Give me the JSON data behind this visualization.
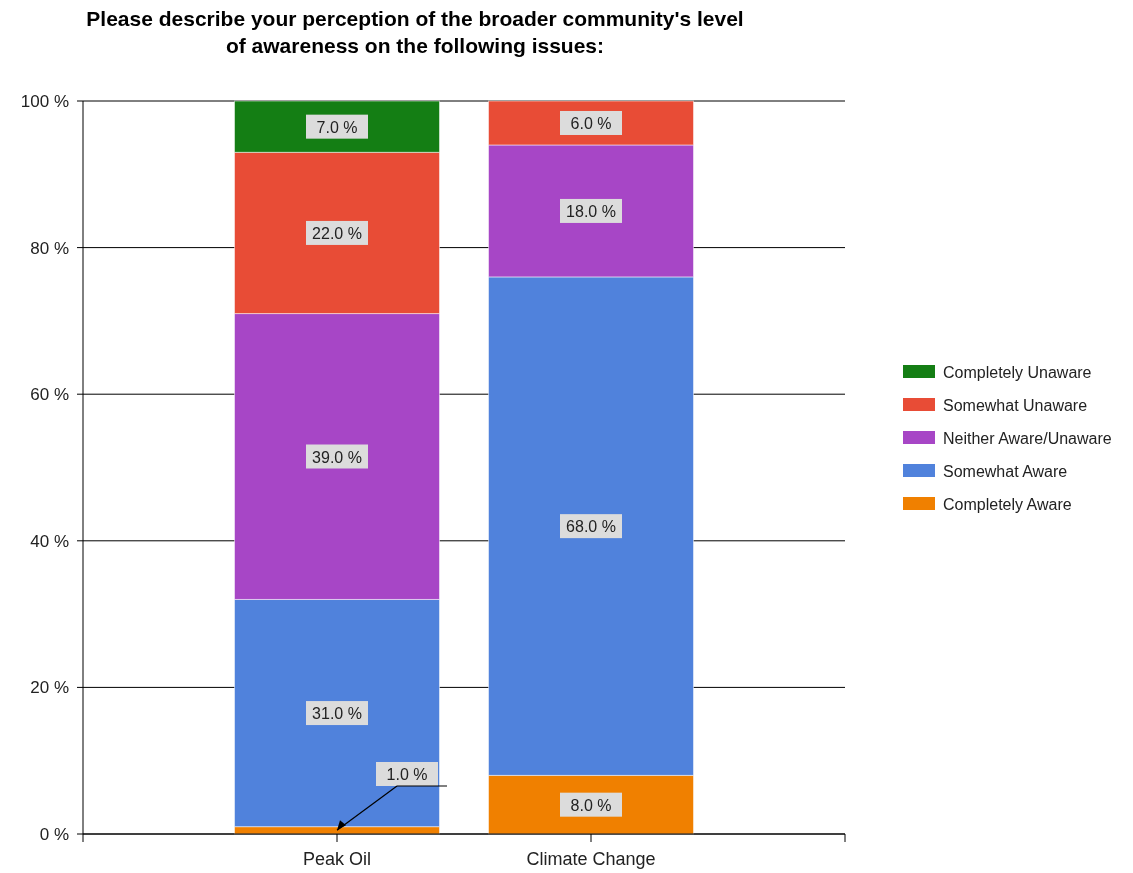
{
  "chart_data": {
    "type": "bar",
    "stacked": true,
    "title": "Please describe your perception of the broader community's level of awareness on the following issues:",
    "categories": [
      "Peak Oil",
      "Climate Change"
    ],
    "series": [
      {
        "name": "Completely Aware",
        "color": "#f08000",
        "values": [
          1,
          8
        ],
        "value_labels": [
          "1.0 %",
          "8.0 %"
        ]
      },
      {
        "name": "Somewhat Aware",
        "color": "#5082dc",
        "values": [
          31,
          68
        ],
        "value_labels": [
          "31.0 %",
          "68.0 %"
        ]
      },
      {
        "name": "Neither Aware/Unaware",
        "color": "#a746c6",
        "values": [
          39,
          18
        ],
        "value_labels": [
          "39.0 %",
          "18.0 %"
        ]
      },
      {
        "name": "Somewhat Unaware",
        "color": "#e84c36",
        "values": [
          22,
          6
        ],
        "value_labels": [
          "22.0 %",
          "6.0 %"
        ]
      },
      {
        "name": "Completely Unaware",
        "color": "#147e14",
        "values": [
          7,
          null
        ],
        "value_labels": [
          "7.0 %",
          null
        ]
      }
    ],
    "ylim": [
      0,
      100
    ],
    "yticks": [
      {
        "value": 0,
        "label": "0 %"
      },
      {
        "value": 20,
        "label": "20 %"
      },
      {
        "value": 40,
        "label": "40 %"
      },
      {
        "value": 60,
        "label": "60 %"
      },
      {
        "value": 80,
        "label": "80 %"
      },
      {
        "value": 100,
        "label": "100 %"
      }
    ],
    "grid": "y",
    "legend": "right"
  }
}
